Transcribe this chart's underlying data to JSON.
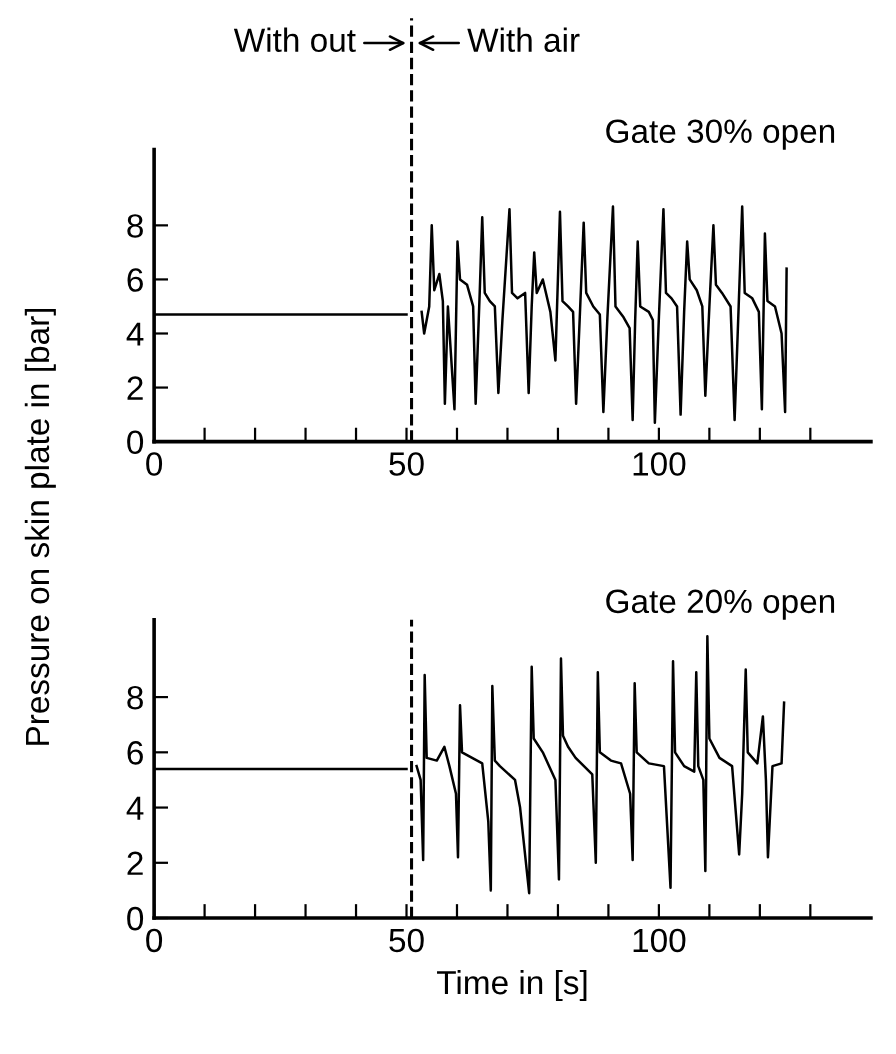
{
  "chart_data": [
    {
      "type": "line",
      "title": "Gate 30% open",
      "ylabel": "Pressure on skin plate in [bar]",
      "annotations": [
        "With out",
        "With air"
      ],
      "series": [
        {
          "color": "#000000",
          "x": [
            0,
            50,
            51,
            53,
            53.5,
            54.5,
            55,
            55.5,
            56.5,
            57.2,
            57.6,
            58.2,
            59.5,
            60.1,
            60.6,
            62,
            63.2,
            63.7,
            64.5,
            65,
            65.5,
            66.5,
            67.5,
            68.2,
            69,
            70.4,
            70.9,
            72,
            73.5,
            74.2,
            74.8,
            75.3,
            75.8,
            77,
            78.5,
            79.5,
            80.4,
            80.9,
            82,
            83,
            83.6,
            84.3,
            85.1,
            85.6,
            87,
            88.3,
            89,
            89.8,
            90.9,
            91.4,
            93,
            94.2,
            94.8,
            95.3,
            95.8,
            96.3,
            98,
            98.8,
            99.2,
            100,
            100.9,
            101.4,
            102.5,
            103.6,
            104.3,
            105,
            105.6,
            106.1,
            107.5,
            108.6,
            109.2,
            110,
            110.8,
            111.3,
            112.5,
            114.2,
            115,
            115.8,
            116.5,
            117,
            118.5,
            119.8,
            120.4,
            121,
            121.5,
            123,
            124.3,
            125,
            125.3
          ],
          "values": [
            4.7,
            4.7,
            null,
            4.8,
            4.0,
            5.0,
            8.0,
            5.6,
            6.2,
            5.2,
            1.4,
            5.0,
            1.2,
            7.4,
            6.0,
            5.8,
            5.0,
            1.4,
            5.5,
            8.3,
            5.5,
            5.2,
            5.0,
            1.8,
            4.5,
            8.6,
            5.5,
            5.3,
            5.5,
            1.8,
            5.0,
            7.0,
            5.5,
            6.0,
            4.8,
            3.0,
            8.5,
            5.2,
            5.0,
            4.8,
            1.4,
            4.5,
            8.1,
            5.5,
            5.0,
            4.7,
            1.1,
            4.6,
            8.7,
            5.0,
            4.6,
            4.2,
            0.8,
            4.5,
            7.4,
            5.0,
            4.8,
            4.5,
            0.7,
            4.6,
            8.6,
            5.5,
            5.3,
            5.0,
            1.0,
            4.8,
            7.4,
            6.0,
            5.6,
            5.0,
            1.7,
            5.0,
            8.0,
            5.8,
            5.5,
            5.0,
            0.8,
            5.0,
            8.7,
            5.5,
            5.3,
            4.8,
            1.2,
            7.7,
            5.2,
            5.0,
            4.0,
            1.1,
            6.4
          ]
        }
      ],
      "xlim": [
        0,
        142
      ],
      "ylim": [
        0,
        10.8
      ],
      "xticks": [
        0,
        {
          "value": 10,
          "label": null
        },
        {
          "value": 20,
          "label": null
        },
        {
          "value": 30,
          "label": null
        },
        {
          "value": 40,
          "label": null
        },
        50,
        {
          "value": 60,
          "label": null
        },
        {
          "value": 70,
          "label": null
        },
        {
          "value": 80,
          "label": null
        },
        {
          "value": 90,
          "label": null
        },
        100,
        {
          "value": 110,
          "label": null
        },
        {
          "value": 120,
          "label": null
        },
        {
          "value": 130,
          "label": null
        }
      ],
      "yticks": [
        0,
        2,
        4,
        6,
        8
      ],
      "ref_lines": [
        {
          "axis": "x",
          "value": 51,
          "line_style": "dashed",
          "color": "#000000"
        }
      ],
      "grid": false,
      "legend": false,
      "marker": "none",
      "line_style": "solid"
    },
    {
      "type": "line",
      "title": "Gate 20% open",
      "xlabel": "Time in [s]",
      "series": [
        {
          "color": "#000000",
          "x": [
            0,
            50,
            51,
            52,
            52.8,
            53.3,
            53.6,
            54,
            56,
            57.5,
            58.5,
            59.8,
            60.2,
            60.6,
            61,
            63,
            65,
            66.2,
            66.7,
            67,
            67.5,
            68.5,
            71.5,
            72.5,
            74.3,
            74.8,
            75.2,
            77,
            79.5,
            80.2,
            80.6,
            81,
            82,
            83.5,
            86.8,
            87.5,
            87.9,
            88.3,
            90.5,
            92.5,
            94.3,
            94.8,
            95.2,
            95.6,
            98,
            101,
            102.3,
            102.8,
            103.2,
            105,
            107,
            107.4,
            107.8,
            108.8,
            109.2,
            109.6,
            110,
            112,
            114.5,
            115.9,
            116.5,
            117.2,
            117.6,
            119.5,
            120.6,
            121.2,
            121.6,
            122.5,
            124.3,
            124.8
          ],
          "values": [
            5.4,
            5.4,
            null,
            5.5,
            5.0,
            2.1,
            8.8,
            5.8,
            5.7,
            6.2,
            5.5,
            4.5,
            2.2,
            7.7,
            6.0,
            5.8,
            5.6,
            3.5,
            1.0,
            8.4,
            5.7,
            5.5,
            5.0,
            4.0,
            0.9,
            9.1,
            6.5,
            6.0,
            5.0,
            1.4,
            9.4,
            6.6,
            6.2,
            5.8,
            5.2,
            2.0,
            8.9,
            6.0,
            5.7,
            5.6,
            4.5,
            2.1,
            8.5,
            6.0,
            5.6,
            5.5,
            1.1,
            9.3,
            6.0,
            5.5,
            5.3,
            8.9,
            5.5,
            5.0,
            1.7,
            10.2,
            6.5,
            5.8,
            5.5,
            2.3,
            4.5,
            9.0,
            6.0,
            5.6,
            7.3,
            5.0,
            2.2,
            5.5,
            5.6,
            7.8
          ]
        }
      ],
      "xlim": [
        0,
        142
      ],
      "ylim": [
        0,
        10.8
      ],
      "xticks": [
        0,
        {
          "value": 10,
          "label": null
        },
        {
          "value": 20,
          "label": null
        },
        {
          "value": 30,
          "label": null
        },
        {
          "value": 40,
          "label": null
        },
        50,
        {
          "value": 60,
          "label": null
        },
        {
          "value": 70,
          "label": null
        },
        {
          "value": 80,
          "label": null
        },
        {
          "value": 90,
          "label": null
        },
        100,
        {
          "value": 110,
          "label": null
        },
        {
          "value": 120,
          "label": null
        },
        {
          "value": 130,
          "label": null
        }
      ],
      "yticks": [
        0,
        2,
        4,
        6,
        8
      ],
      "ref_lines": [
        {
          "axis": "x",
          "value": 51,
          "line_style": "dashed",
          "color": "#000000"
        }
      ],
      "grid": false,
      "legend": false,
      "marker": "none",
      "line_style": "solid"
    }
  ]
}
